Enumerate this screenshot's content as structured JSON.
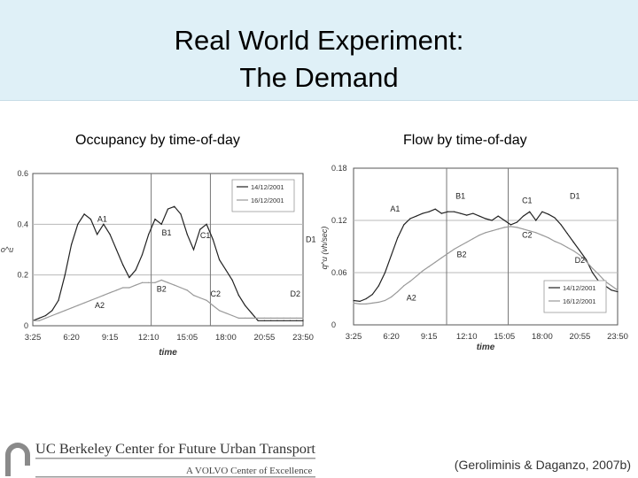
{
  "slide": {
    "title_line1": "Real World Experiment:",
    "title_line2": "The Demand",
    "subtitle_left": "Occupancy by time-of-day",
    "subtitle_right": "Flow by time-of-day",
    "citation": "(Geroliminis & Daganzo, 2007b)",
    "logo_line1": "UC Berkeley Center for Future Urban Transport",
    "logo_line2": "A VOLVO Center of Excellence"
  },
  "chart_data": [
    {
      "type": "line",
      "title": "Occupancy by time-of-day",
      "xlabel": "time",
      "ylabel": "o^u",
      "ylim": [
        0,
        0.6
      ],
      "yticks": [
        "0",
        "0.2",
        "0.4",
        "0.6"
      ],
      "xticks": [
        "3:25",
        "6:20",
        "9:15",
        "12:10",
        "15:05",
        "18:00",
        "20:55",
        "23:50"
      ],
      "x": [
        0,
        0.5,
        1,
        1.5,
        2,
        2.5,
        3,
        3.5,
        4,
        4.5,
        5,
        5.5,
        6,
        6.5,
        7,
        7.5,
        8,
        8.5,
        9,
        9.5,
        10,
        10.5,
        11,
        11.5,
        12,
        12.5,
        13,
        13.5,
        14,
        14.5,
        15,
        15.5,
        16,
        16.5,
        17,
        17.5,
        18,
        18.5,
        19,
        19.5,
        20,
        20.5,
        21
      ],
      "series": [
        {
          "name": "14/12/2001",
          "color": "#222222",
          "values": [
            0.02,
            0.03,
            0.04,
            0.06,
            0.1,
            0.2,
            0.32,
            0.4,
            0.44,
            0.42,
            0.36,
            0.4,
            0.36,
            0.3,
            0.24,
            0.19,
            0.22,
            0.28,
            0.36,
            0.42,
            0.4,
            0.46,
            0.47,
            0.44,
            0.36,
            0.3,
            0.38,
            0.4,
            0.34,
            0.26,
            0.22,
            0.18,
            0.12,
            0.08,
            0.05,
            0.02,
            0.02,
            0.02,
            0.02,
            0.02,
            0.02,
            0.02,
            0.02
          ]
        },
        {
          "name": "16/12/2001",
          "color": "#999999",
          "values": [
            0.02,
            0.02,
            0.03,
            0.04,
            0.05,
            0.06,
            0.07,
            0.08,
            0.09,
            0.1,
            0.11,
            0.12,
            0.13,
            0.14,
            0.15,
            0.15,
            0.16,
            0.17,
            0.17,
            0.17,
            0.18,
            0.17,
            0.16,
            0.15,
            0.14,
            0.12,
            0.11,
            0.1,
            0.08,
            0.06,
            0.05,
            0.04,
            0.03,
            0.03,
            0.03,
            0.03,
            0.03,
            0.03,
            0.03,
            0.03,
            0.03,
            0.03,
            0.03
          ]
        }
      ],
      "vlines": [
        9.2,
        13.8
      ],
      "annotations": [
        {
          "label": "A1",
          "x": 5.4,
          "y": 0.41
        },
        {
          "label": "B1",
          "x": 10.4,
          "y": 0.355
        },
        {
          "label": "C1",
          "x": 13.4,
          "y": 0.345
        },
        {
          "label": "D1",
          "x": 21.6,
          "y": 0.33
        },
        {
          "label": "A2",
          "x": 5.2,
          "y": 0.07
        },
        {
          "label": "B2",
          "x": 10.0,
          "y": 0.135
        },
        {
          "label": "C2",
          "x": 14.2,
          "y": 0.115
        },
        {
          "label": "D2",
          "x": 20.4,
          "y": 0.115
        }
      ],
      "legend": [
        {
          "label": "14/12/2001"
        },
        {
          "label": "16/12/2001"
        }
      ],
      "legend_position": "top-right"
    },
    {
      "type": "line",
      "title": "Flow by time-of-day",
      "xlabel": "time",
      "ylabel": "q^u (vh/sec)",
      "ylim": [
        0,
        0.18
      ],
      "yticks": [
        "0",
        "0.06",
        "0.12",
        "0.18"
      ],
      "xticks": [
        "3:25",
        "6:20",
        "9:15",
        "12:10",
        "15:05",
        "18:00",
        "20:55",
        "23:50"
      ],
      "x": [
        0,
        0.5,
        1,
        1.5,
        2,
        2.5,
        3,
        3.5,
        4,
        4.5,
        5,
        5.5,
        6,
        6.5,
        7,
        7.5,
        8,
        8.5,
        9,
        9.5,
        10,
        10.5,
        11,
        11.5,
        12,
        12.5,
        13,
        13.5,
        14,
        14.5,
        15,
        15.5,
        16,
        16.5,
        17,
        17.5,
        18,
        18.5,
        19,
        19.5,
        20,
        20.5,
        21
      ],
      "series": [
        {
          "name": "14/12/2001",
          "color": "#222222",
          "values": [
            0.028,
            0.027,
            0.03,
            0.035,
            0.045,
            0.06,
            0.08,
            0.1,
            0.115,
            0.122,
            0.125,
            0.128,
            0.13,
            0.133,
            0.128,
            0.13,
            0.13,
            0.128,
            0.126,
            0.128,
            0.125,
            0.122,
            0.12,
            0.125,
            0.12,
            0.115,
            0.118,
            0.125,
            0.13,
            0.12,
            0.13,
            0.127,
            0.123,
            0.115,
            0.105,
            0.095,
            0.085,
            0.075,
            0.06,
            0.05,
            0.045,
            0.04,
            0.038
          ]
        },
        {
          "name": "16/12/2001",
          "color": "#999999",
          "values": [
            0.025,
            0.024,
            0.024,
            0.025,
            0.026,
            0.028,
            0.032,
            0.038,
            0.045,
            0.05,
            0.056,
            0.062,
            0.067,
            0.072,
            0.077,
            0.082,
            0.087,
            0.091,
            0.095,
            0.099,
            0.103,
            0.106,
            0.108,
            0.11,
            0.112,
            0.113,
            0.112,
            0.11,
            0.108,
            0.106,
            0.103,
            0.1,
            0.096,
            0.093,
            0.089,
            0.085,
            0.08,
            0.073,
            0.065,
            0.058,
            0.05,
            0.045,
            0.04
          ]
        }
      ],
      "vlines": [
        7.4,
        12.3
      ],
      "annotations": [
        {
          "label": "A1",
          "x": 3.3,
          "y": 0.13
        },
        {
          "label": "B1",
          "x": 8.5,
          "y": 0.145
        },
        {
          "label": "C1",
          "x": 13.8,
          "y": 0.14
        },
        {
          "label": "D1",
          "x": 17.6,
          "y": 0.145
        },
        {
          "label": "A2",
          "x": 4.6,
          "y": 0.028
        },
        {
          "label": "B2",
          "x": 8.6,
          "y": 0.078
        },
        {
          "label": "C2",
          "x": 13.8,
          "y": 0.1
        },
        {
          "label": "D2",
          "x": 18.0,
          "y": 0.071
        }
      ],
      "legend": [
        {
          "label": "14/12/2001"
        },
        {
          "label": "16/12/2001"
        }
      ],
      "legend_position": "bottom-right"
    }
  ]
}
